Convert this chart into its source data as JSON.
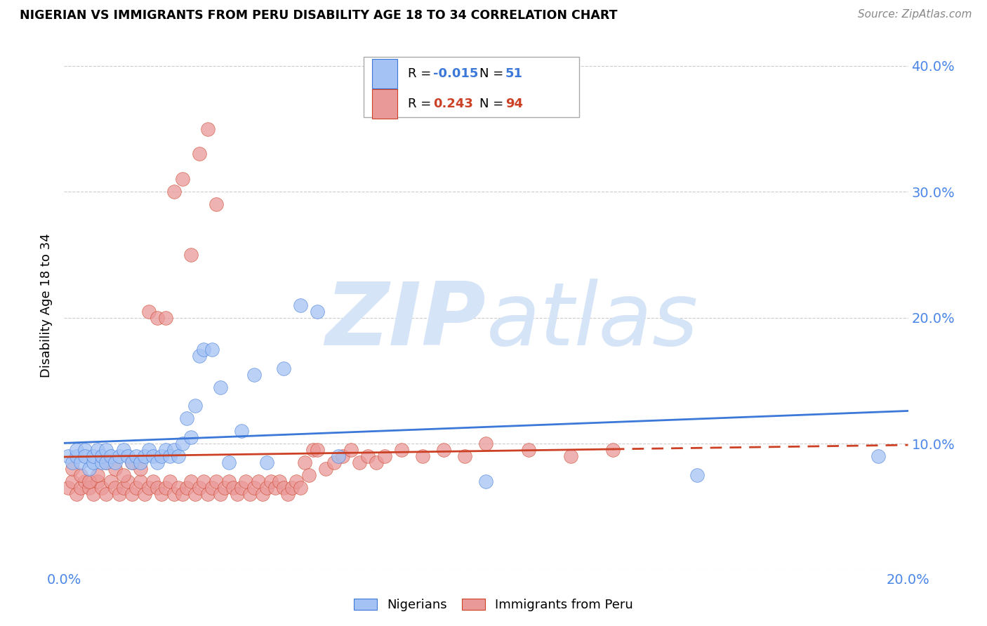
{
  "title": "NIGERIAN VS IMMIGRANTS FROM PERU DISABILITY AGE 18 TO 34 CORRELATION CHART",
  "source": "Source: ZipAtlas.com",
  "ylabel": "Disability Age 18 to 34",
  "x_min": 0.0,
  "x_max": 0.2,
  "y_min": 0.0,
  "y_max": 0.42,
  "blue_color": "#a4c2f4",
  "pink_color": "#ea9999",
  "blue_line_color": "#3c78d8",
  "pink_line_color": "#cc4125",
  "tick_color": "#4a86e8",
  "grid_color": "#cccccc",
  "watermark_color": "#d6e4f7",
  "nigerians_x": [
    0.001,
    0.002,
    0.003,
    0.003,
    0.004,
    0.005,
    0.005,
    0.006,
    0.007,
    0.007,
    0.008,
    0.009,
    0.009,
    0.01,
    0.01,
    0.011,
    0.012,
    0.013,
    0.014,
    0.015,
    0.016,
    0.017,
    0.018,
    0.019,
    0.02,
    0.021,
    0.022,
    0.023,
    0.024,
    0.025,
    0.026,
    0.027,
    0.028,
    0.029,
    0.03,
    0.031,
    0.032,
    0.033,
    0.035,
    0.037,
    0.039,
    0.042,
    0.045,
    0.048,
    0.052,
    0.056,
    0.06,
    0.065,
    0.1,
    0.15,
    0.193
  ],
  "nigerians_y": [
    0.09,
    0.085,
    0.09,
    0.095,
    0.085,
    0.095,
    0.09,
    0.08,
    0.085,
    0.09,
    0.095,
    0.085,
    0.09,
    0.085,
    0.095,
    0.09,
    0.085,
    0.09,
    0.095,
    0.09,
    0.085,
    0.09,
    0.085,
    0.09,
    0.095,
    0.09,
    0.085,
    0.09,
    0.095,
    0.09,
    0.095,
    0.09,
    0.1,
    0.12,
    0.105,
    0.13,
    0.17,
    0.175,
    0.175,
    0.145,
    0.085,
    0.11,
    0.155,
    0.085,
    0.16,
    0.21,
    0.205,
    0.09,
    0.07,
    0.075,
    0.09
  ],
  "peru_x": [
    0.001,
    0.002,
    0.003,
    0.004,
    0.005,
    0.006,
    0.007,
    0.008,
    0.009,
    0.01,
    0.011,
    0.012,
    0.013,
    0.014,
    0.015,
    0.016,
    0.017,
    0.018,
    0.019,
    0.02,
    0.021,
    0.022,
    0.023,
    0.024,
    0.025,
    0.026,
    0.027,
    0.028,
    0.029,
    0.03,
    0.031,
    0.032,
    0.033,
    0.034,
    0.035,
    0.036,
    0.037,
    0.038,
    0.039,
    0.04,
    0.041,
    0.042,
    0.043,
    0.044,
    0.045,
    0.046,
    0.047,
    0.048,
    0.049,
    0.05,
    0.051,
    0.052,
    0.053,
    0.054,
    0.055,
    0.056,
    0.057,
    0.058,
    0.059,
    0.06,
    0.062,
    0.064,
    0.066,
    0.068,
    0.07,
    0.072,
    0.074,
    0.076,
    0.08,
    0.085,
    0.09,
    0.095,
    0.1,
    0.11,
    0.12,
    0.13,
    0.002,
    0.004,
    0.006,
    0.008,
    0.01,
    0.012,
    0.014,
    0.016,
    0.018,
    0.02,
    0.022,
    0.024,
    0.026,
    0.028,
    0.03,
    0.032,
    0.034,
    0.036
  ],
  "peru_y": [
    0.065,
    0.07,
    0.06,
    0.065,
    0.07,
    0.065,
    0.06,
    0.07,
    0.065,
    0.06,
    0.07,
    0.065,
    0.06,
    0.065,
    0.07,
    0.06,
    0.065,
    0.07,
    0.06,
    0.065,
    0.07,
    0.065,
    0.06,
    0.065,
    0.07,
    0.06,
    0.065,
    0.06,
    0.065,
    0.07,
    0.06,
    0.065,
    0.07,
    0.06,
    0.065,
    0.07,
    0.06,
    0.065,
    0.07,
    0.065,
    0.06,
    0.065,
    0.07,
    0.06,
    0.065,
    0.07,
    0.06,
    0.065,
    0.07,
    0.065,
    0.07,
    0.065,
    0.06,
    0.065,
    0.07,
    0.065,
    0.085,
    0.075,
    0.095,
    0.095,
    0.08,
    0.085,
    0.09,
    0.095,
    0.085,
    0.09,
    0.085,
    0.09,
    0.095,
    0.09,
    0.095,
    0.09,
    0.1,
    0.095,
    0.09,
    0.095,
    0.08,
    0.075,
    0.07,
    0.075,
    0.085,
    0.08,
    0.075,
    0.085,
    0.08,
    0.205,
    0.2,
    0.2,
    0.3,
    0.31,
    0.25,
    0.33,
    0.35,
    0.29
  ]
}
